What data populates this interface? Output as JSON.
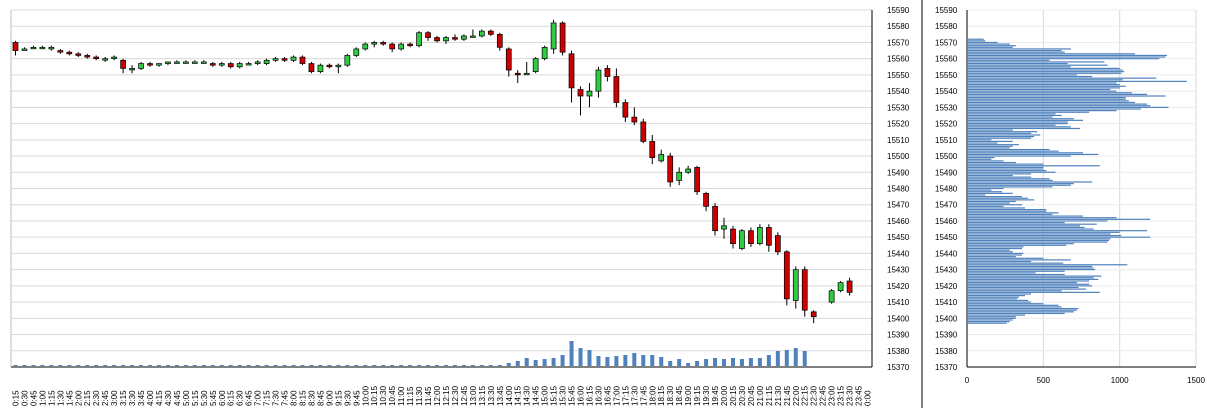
{
  "chart_data": [
    {
      "type": "candlestick",
      "title": "",
      "xlabel": "",
      "ylabel": "",
      "ylim": [
        15370,
        15590
      ],
      "ytick_step": 10,
      "grid": true,
      "colors": {
        "up": "#2ecc40",
        "down": "#cc0000",
        "wick": "#000000",
        "volume": "#4f81bd",
        "grid": "#d9d9d9"
      },
      "time_labels": [
        "0:15",
        "0:30",
        "0:45",
        "1:00",
        "1:15",
        "1:30",
        "1:45",
        "2:00",
        "2:15",
        "2:30",
        "2:45",
        "3:00",
        "3:15",
        "3:30",
        "3:45",
        "4:00",
        "4:15",
        "4:30",
        "4:45",
        "5:00",
        "5:15",
        "5:30",
        "5:45",
        "6:00",
        "6:15",
        "6:30",
        "6:45",
        "7:00",
        "7:15",
        "7:30",
        "7:45",
        "8:00",
        "8:15",
        "8:30",
        "8:45",
        "9:00",
        "9:15",
        "9:30",
        "9:45",
        "10:00",
        "10:15",
        "10:30",
        "10:45",
        "11:00",
        "11:15",
        "11:30",
        "11:45",
        "12:00",
        "12:15",
        "12:30",
        "12:45",
        "13:00",
        "13:15",
        "13:30",
        "13:45",
        "14:00",
        "14:15",
        "14:30",
        "14:45",
        "15:00",
        "15:15",
        "15:30",
        "15:45",
        "16:00",
        "16:15",
        "16:30",
        "16:45",
        "17:00",
        "17:15",
        "17:30",
        "17:45",
        "18:00",
        "18:15",
        "18:30",
        "18:45",
        "19:00",
        "19:15",
        "19:30",
        "19:45",
        "20:00",
        "20:15",
        "20:30",
        "20:45",
        "21:00",
        "21:15",
        "21:30",
        "21:45",
        "22:00",
        "22:15",
        "22:30",
        "22:45",
        "23:00",
        "23:15",
        "23:30",
        "23:45",
        "0:00"
      ],
      "ohlc": [
        {
          "o": 15570,
          "h": 15571,
          "l": 15562,
          "c": 15565
        },
        {
          "o": 15566,
          "h": 15567,
          "l": 15565,
          "c": 15566
        },
        {
          "o": 15567,
          "h": 15568,
          "l": 15566,
          "c": 15567
        },
        {
          "o": 15567,
          "h": 15568,
          "l": 15566,
          "c": 15567
        },
        {
          "o": 15566,
          "h": 15568,
          "l": 15565,
          "c": 15567
        },
        {
          "o": 15565,
          "h": 15566,
          "l": 15563,
          "c": 15564
        },
        {
          "o": 15564,
          "h": 15565,
          "l": 15562,
          "c": 15563
        },
        {
          "o": 15563,
          "h": 15564,
          "l": 15561,
          "c": 15562
        },
        {
          "o": 15562,
          "h": 15563,
          "l": 15560,
          "c": 15561
        },
        {
          "o": 15561,
          "h": 15562,
          "l": 15559,
          "c": 15560
        },
        {
          "o": 15560,
          "h": 15561,
          "l": 15558,
          "c": 15560
        },
        {
          "o": 15561,
          "h": 15562,
          "l": 15559,
          "c": 15561
        },
        {
          "o": 15559,
          "h": 15560,
          "l": 15551,
          "c": 15554
        },
        {
          "o": 15554,
          "h": 15556,
          "l": 15551,
          "c": 15554
        },
        {
          "o": 15554,
          "h": 15558,
          "l": 15553,
          "c": 15557
        },
        {
          "o": 15557,
          "h": 15558,
          "l": 15555,
          "c": 15556
        },
        {
          "o": 15556,
          "h": 15557,
          "l": 15555,
          "c": 15557
        },
        {
          "o": 15557,
          "h": 15558,
          "l": 15556,
          "c": 15558
        },
        {
          "o": 15558,
          "h": 15559,
          "l": 15557,
          "c": 15558
        },
        {
          "o": 15558,
          "h": 15559,
          "l": 15557,
          "c": 15558
        },
        {
          "o": 15558,
          "h": 15559,
          "l": 15557,
          "c": 15558
        },
        {
          "o": 15558,
          "h": 15559,
          "l": 15557,
          "c": 15558
        },
        {
          "o": 15557,
          "h": 15558,
          "l": 15555,
          "c": 15556
        },
        {
          "o": 15556,
          "h": 15558,
          "l": 15555,
          "c": 15557
        },
        {
          "o": 15557,
          "h": 15558,
          "l": 15554,
          "c": 15555
        },
        {
          "o": 15555,
          "h": 15558,
          "l": 15554,
          "c": 15557
        },
        {
          "o": 15557,
          "h": 15558,
          "l": 15556,
          "c": 15557
        },
        {
          "o": 15557,
          "h": 15559,
          "l": 15556,
          "c": 15558
        },
        {
          "o": 15557,
          "h": 15560,
          "l": 15556,
          "c": 15559
        },
        {
          "o": 15559,
          "h": 15561,
          "l": 15558,
          "c": 15560
        },
        {
          "o": 15560,
          "h": 15561,
          "l": 15558,
          "c": 15559
        },
        {
          "o": 15559,
          "h": 15562,
          "l": 15558,
          "c": 15561
        },
        {
          "o": 15561,
          "h": 15562,
          "l": 15556,
          "c": 15557
        },
        {
          "o": 15557,
          "h": 15558,
          "l": 15551,
          "c": 15552
        },
        {
          "o": 15552,
          "h": 15557,
          "l": 15551,
          "c": 15556
        },
        {
          "o": 15556,
          "h": 15557,
          "l": 15554,
          "c": 15555
        },
        {
          "o": 15555,
          "h": 15557,
          "l": 15551,
          "c": 15556
        },
        {
          "o": 15556,
          "h": 15563,
          "l": 15555,
          "c": 15562
        },
        {
          "o": 15562,
          "h": 15567,
          "l": 15561,
          "c": 15566
        },
        {
          "o": 15566,
          "h": 15570,
          "l": 15565,
          "c": 15569
        },
        {
          "o": 15569,
          "h": 15571,
          "l": 15567,
          "c": 15570
        },
        {
          "o": 15570,
          "h": 15571,
          "l": 15568,
          "c": 15569
        },
        {
          "o": 15569,
          "h": 15570,
          "l": 15564,
          "c": 15566
        },
        {
          "o": 15566,
          "h": 15570,
          "l": 15565,
          "c": 15569
        },
        {
          "o": 15569,
          "h": 15570,
          "l": 15567,
          "c": 15568
        },
        {
          "o": 15568,
          "h": 15577,
          "l": 15567,
          "c": 15576
        },
        {
          "o": 15576,
          "h": 15577,
          "l": 15571,
          "c": 15573
        },
        {
          "o": 15573,
          "h": 15574,
          "l": 15570,
          "c": 15571
        },
        {
          "o": 15571,
          "h": 15574,
          "l": 15569,
          "c": 15573
        },
        {
          "o": 15573,
          "h": 15575,
          "l": 15571,
          "c": 15572
        },
        {
          "o": 15572,
          "h": 15575,
          "l": 15571,
          "c": 15574
        },
        {
          "o": 15574,
          "h": 15578,
          "l": 15573,
          "c": 15574
        },
        {
          "o": 15574,
          "h": 15578,
          "l": 15573,
          "c": 15577
        },
        {
          "o": 15577,
          "h": 15578,
          "l": 15574,
          "c": 15575
        },
        {
          "o": 15575,
          "h": 15576,
          "l": 15565,
          "c": 15567
        },
        {
          "o": 15566,
          "h": 15567,
          "l": 15549,
          "c": 15553
        },
        {
          "o": 15551,
          "h": 15553,
          "l": 15545,
          "c": 15550
        },
        {
          "o": 15551,
          "h": 15558,
          "l": 15550,
          "c": 15551
        },
        {
          "o": 15552,
          "h": 15561,
          "l": 15551,
          "c": 15560
        },
        {
          "o": 15560,
          "h": 15568,
          "l": 15559,
          "c": 15567
        },
        {
          "o": 15566,
          "h": 15584,
          "l": 15563,
          "c": 15582
        },
        {
          "o": 15582,
          "h": 15583,
          "l": 15562,
          "c": 15564
        },
        {
          "o": 15563,
          "h": 15565,
          "l": 15533,
          "c": 15542
        },
        {
          "o": 15541,
          "h": 15543,
          "l": 15525,
          "c": 15537
        },
        {
          "o": 15537,
          "h": 15545,
          "l": 15530,
          "c": 15540
        },
        {
          "o": 15540,
          "h": 15555,
          "l": 15536,
          "c": 15553
        },
        {
          "o": 15554,
          "h": 15556,
          "l": 15546,
          "c": 15549
        },
        {
          "o": 15549,
          "h": 15554,
          "l": 15530,
          "c": 15533
        },
        {
          "o": 15533,
          "h": 15535,
          "l": 15521,
          "c": 15524
        },
        {
          "o": 15524,
          "h": 15530,
          "l": 15519,
          "c": 15521
        },
        {
          "o": 15521,
          "h": 15523,
          "l": 15508,
          "c": 15509
        },
        {
          "o": 15509,
          "h": 15513,
          "l": 15495,
          "c": 15499
        },
        {
          "o": 15497,
          "h": 15504,
          "l": 15496,
          "c": 15501
        },
        {
          "o": 15500,
          "h": 15502,
          "l": 15481,
          "c": 15484
        },
        {
          "o": 15485,
          "h": 15493,
          "l": 15482,
          "c": 15490
        },
        {
          "o": 15490,
          "h": 15494,
          "l": 15489,
          "c": 15492
        },
        {
          "o": 15493,
          "h": 15494,
          "l": 15476,
          "c": 15478
        },
        {
          "o": 15477,
          "h": 15478,
          "l": 15466,
          "c": 15469
        },
        {
          "o": 15469,
          "h": 15471,
          "l": 15451,
          "c": 15454
        },
        {
          "o": 15455,
          "h": 15462,
          "l": 15449,
          "c": 15457
        },
        {
          "o": 15455,
          "h": 15457,
          "l": 15443,
          "c": 15446
        },
        {
          "o": 15443,
          "h": 15455,
          "l": 15442,
          "c": 15454
        },
        {
          "o": 15454,
          "h": 15456,
          "l": 15444,
          "c": 15446
        },
        {
          "o": 15446,
          "h": 15458,
          "l": 15445,
          "c": 15456
        },
        {
          "o": 15456,
          "h": 15458,
          "l": 15441,
          "c": 15445
        },
        {
          "o": 15451,
          "h": 15453,
          "l": 15439,
          "c": 15441
        },
        {
          "o": 15441,
          "h": 15442,
          "l": 15408,
          "c": 15412
        },
        {
          "o": 15411,
          "h": 15432,
          "l": 15406,
          "c": 15430
        },
        {
          "o": 15430,
          "h": 15432,
          "l": 15401,
          "c": 15405
        },
        {
          "o": 15404,
          "h": 15405,
          "l": 15397,
          "c": 15401
        },
        null,
        {
          "o": 15410,
          "h": 15418,
          "l": 15409,
          "c": 15417
        },
        {
          "o": 15417,
          "h": 15423,
          "l": 15416,
          "c": 15422
        },
        {
          "o": 15423,
          "h": 15425,
          "l": 15414,
          "c": 15416
        },
        null,
        null
      ],
      "volume": [
        1,
        1,
        1,
        1,
        1,
        1,
        1,
        1,
        1,
        1,
        1,
        1,
        1,
        1,
        1,
        1,
        1,
        1,
        1,
        1,
        1,
        1,
        1,
        1,
        1,
        1,
        1,
        1,
        1,
        1,
        1,
        1,
        1,
        1,
        1,
        1,
        1,
        1,
        1,
        1,
        1,
        1,
        1,
        1,
        1,
        1,
        1,
        1,
        1,
        1,
        1,
        1,
        1,
        1,
        1,
        3,
        5,
        8,
        6,
        7,
        8,
        11,
        25,
        18,
        16,
        10,
        9,
        10,
        11,
        13,
        11,
        11,
        9,
        5,
        7,
        3,
        5,
        7,
        8,
        7,
        8,
        7,
        8,
        8,
        11,
        15,
        16,
        18,
        15,
        0,
        0,
        0,
        0,
        0,
        0,
        0
      ]
    },
    {
      "type": "horizontal-bar",
      "title": "",
      "xlabel": "",
      "ylabel": "",
      "xlim": [
        0,
        1500
      ],
      "x_ticks": [
        "0",
        "500",
        "1000",
        "1500"
      ],
      "ylim": [
        15370,
        15590
      ],
      "ytick_step": 10,
      "price_start": 15397,
      "price_step": 1,
      "values": [
        260,
        280,
        300,
        320,
        320,
        380,
        640,
        700,
        720,
        730,
        620,
        600,
        500,
        420,
        400,
        330,
        340,
        380,
        420,
        870,
        620,
        780,
        730,
        820,
        800,
        720,
        800,
        860,
        830,
        880,
        640,
        450,
        640,
        840,
        830,
        820,
        1050,
        630,
        420,
        680,
        500,
        320,
        360,
        370,
        300,
        280,
        360,
        370,
        650,
        700,
        920,
        930,
        940,
        1200,
        1010,
        940,
        1000,
        1180,
        830,
        770,
        740,
        850,
        640,
        920,
        1200,
        980,
        760,
        560,
        600,
        520,
        520,
        380,
        240,
        360,
        280,
        320,
        440,
        400,
        360,
        120,
        300,
        230,
        160,
        240,
        560,
        680,
        700,
        820,
        560,
        540,
        420,
        300,
        420,
        580,
        520,
        500,
        500,
        870,
        500,
        320,
        240,
        160,
        180,
        680,
        860,
        760,
        600,
        540,
        280,
        300,
        340,
        200,
        300,
        160,
        420,
        440,
        480,
        420,
        460,
        300,
        740,
        680,
        580,
        660,
        660,
        760,
        700,
        560,
        620,
        580,
        800,
        980,
        1140,
        1320,
        1200,
        1180,
        1100,
        1060,
        1040,
        1040,
        1300,
        1180,
        1080,
        980,
        940,
        1000,
        1040,
        1000,
        980,
        1440,
        1020,
        1240,
        820,
        720,
        1010,
        1030,
        1020,
        1000,
        680,
        920,
        660,
        900,
        540,
        1260,
        1300,
        1310,
        1100,
        640,
        620,
        680,
        300,
        320,
        280,
        200,
        120,
        110
      ]
    }
  ]
}
